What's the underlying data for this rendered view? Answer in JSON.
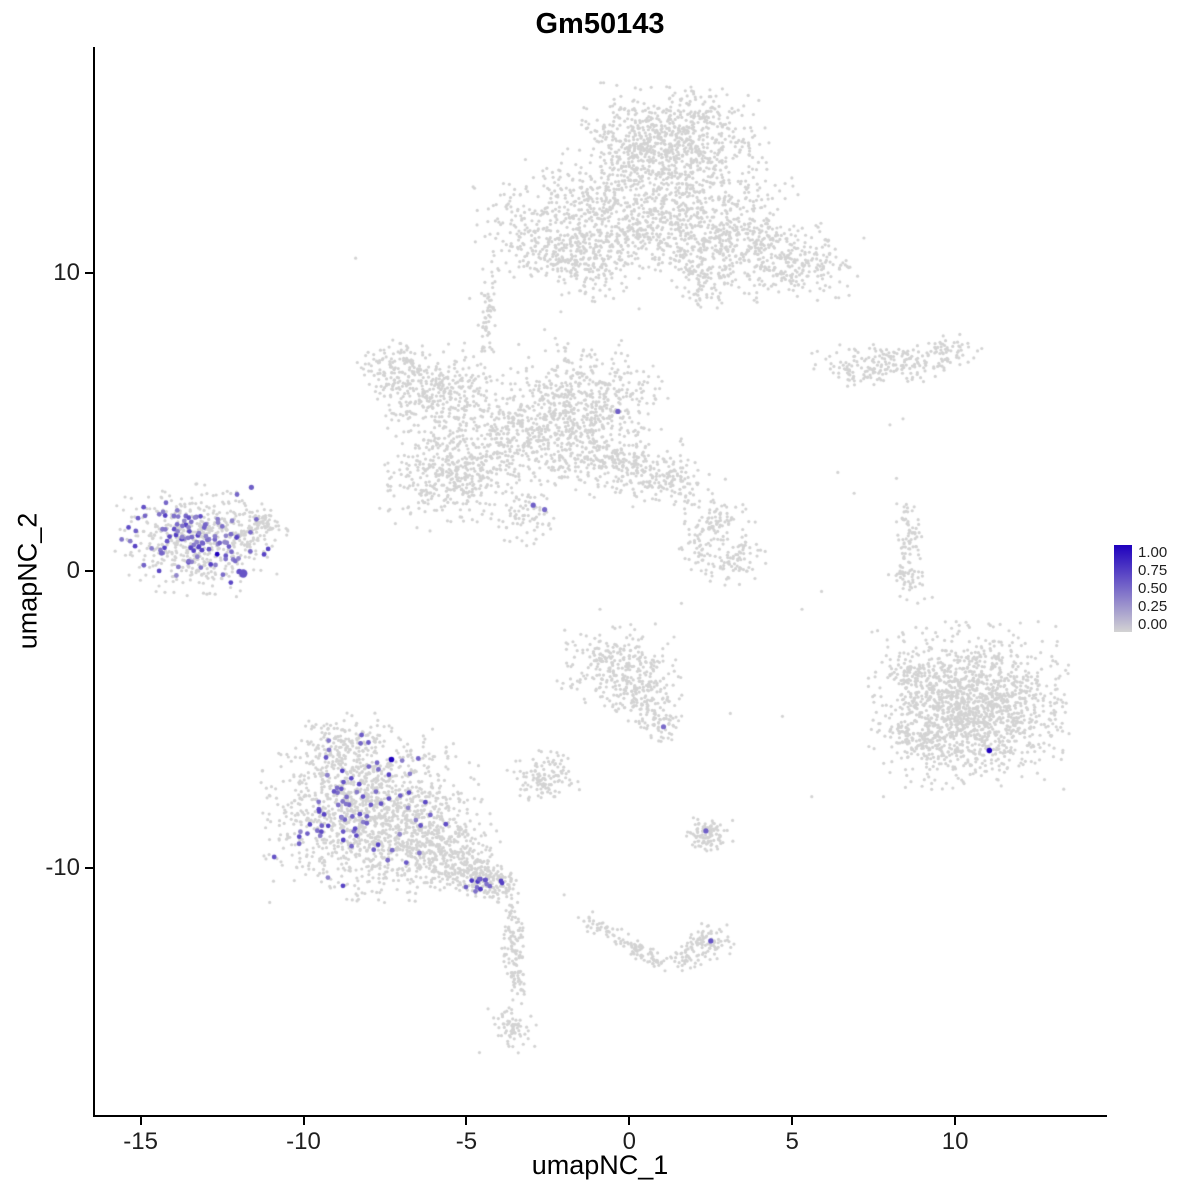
{
  "title": "Gm50143",
  "axes": {
    "xlabel": "umapNC_1",
    "ylabel": "umapNC_2",
    "x_ticks": [
      -15,
      -10,
      -5,
      0,
      5,
      10
    ],
    "y_ticks": [
      -10,
      0,
      10
    ]
  },
  "legend": {
    "labels": [
      "1.00",
      "0.75",
      "0.50",
      "0.25",
      "0.00"
    ],
    "color_high": "#1e00be",
    "color_low": "#d3d3d3"
  },
  "chart_data": {
    "type": "scatter",
    "title": "Gm50143",
    "xlabel": "umapNC_1",
    "ylabel": "umapNC_2",
    "xlim": [
      -16.4,
      14.6
    ],
    "ylim": [
      -18.3,
      17.6
    ],
    "x_ticks": [
      -15,
      -10,
      -5,
      0,
      5,
      10
    ],
    "y_ticks": [
      -10,
      0,
      10
    ],
    "grid": false,
    "legend_position": "right",
    "color_scale": {
      "low": "#d3d3d3",
      "high": "#1e00be",
      "domain": [
        0,
        1
      ],
      "tick_labels": [
        "1.00",
        "0.75",
        "0.50",
        "0.25",
        "0.00"
      ]
    },
    "seed": 7,
    "encoding_note": "UMAP point cloud encoded as gaussian cluster summaries: cx,cy = center (data units), sx,sy = std dev, n = point count, v = Gm50143 expression (0-1, 0 = grey background)",
    "background_clusters": [
      {
        "cx": 1.3,
        "cy": 14.4,
        "sx": 1.25,
        "sy": 0.85,
        "n": 850
      },
      {
        "cx": 0.1,
        "cy": 11.9,
        "sx": 2.1,
        "sy": 0.95,
        "n": 1000
      },
      {
        "cx": 2.9,
        "cy": 11.1,
        "sx": 1.1,
        "sy": 0.75,
        "n": 350
      },
      {
        "cx": 5.2,
        "cy": 10.3,
        "sx": 0.85,
        "sy": 0.6,
        "n": 220
      },
      {
        "cx": -2.6,
        "cy": 10.7,
        "sx": 0.7,
        "sy": 0.45,
        "n": 120
      },
      {
        "cx": -1.3,
        "cy": 10.2,
        "sx": 0.6,
        "sy": 0.5,
        "n": 120
      },
      {
        "cx": 2.3,
        "cy": 9.7,
        "sx": 0.45,
        "sy": 0.45,
        "n": 70
      },
      {
        "cx": -4.35,
        "cy": 8.4,
        "sx": 0.14,
        "sy": 0.75,
        "n": 55
      },
      {
        "cx": -6.0,
        "cy": 5.9,
        "sx": 0.95,
        "sy": 0.75,
        "n": 320
      },
      {
        "cx": -7.1,
        "cy": 6.9,
        "sx": 0.55,
        "sy": 0.45,
        "n": 110
      },
      {
        "cx": -1.3,
        "cy": 5.6,
        "sx": 1.05,
        "sy": 0.95,
        "n": 550
      },
      {
        "cx": -3.6,
        "cy": 4.5,
        "sx": 1.15,
        "sy": 0.85,
        "n": 420
      },
      {
        "cx": -5.6,
        "cy": 3.1,
        "sx": 0.95,
        "sy": 0.75,
        "n": 350
      },
      {
        "cx": -0.6,
        "cy": 3.7,
        "sx": 0.95,
        "sy": 0.55,
        "n": 220
      },
      {
        "cx": 1.1,
        "cy": 3.0,
        "sx": 0.8,
        "sy": 0.45,
        "n": 130
      },
      {
        "cx": -3.2,
        "cy": 1.9,
        "sx": 0.45,
        "sy": 0.45,
        "n": 70
      },
      {
        "cx": -13.3,
        "cy": 1.0,
        "sx": 1.05,
        "sy": 0.8,
        "n": 500
      },
      {
        "cx": -11.6,
        "cy": 1.3,
        "sx": 0.5,
        "sy": 0.38,
        "n": 90
      },
      {
        "cx": -11.05,
        "cy": 1.45,
        "sx": 0.25,
        "sy": 0.2,
        "n": 30
      },
      {
        "cx": 8.2,
        "cy": 7.0,
        "sx": 1.1,
        "sy": 0.32,
        "n": 170
      },
      {
        "cx": 9.8,
        "cy": 7.4,
        "sx": 0.45,
        "sy": 0.25,
        "n": 45
      },
      {
        "cx": 6.9,
        "cy": 6.6,
        "sx": 0.35,
        "sy": 0.2,
        "n": 30
      },
      {
        "cx": 8.6,
        "cy": 1.2,
        "sx": 0.2,
        "sy": 0.55,
        "n": 60
      },
      {
        "cx": 8.55,
        "cy": -0.15,
        "sx": 0.25,
        "sy": 0.4,
        "n": 50
      },
      {
        "cx": 2.7,
        "cy": 1.6,
        "sx": 0.5,
        "sy": 0.32,
        "n": 80
      },
      {
        "cx": 3.3,
        "cy": 0.45,
        "sx": 0.4,
        "sy": 0.45,
        "n": 80
      },
      {
        "cx": 2.2,
        "cy": 0.6,
        "sx": 0.3,
        "sy": 0.28,
        "n": 40
      },
      {
        "cx": 10.45,
        "cy": -4.55,
        "sx": 1.3,
        "sy": 1.2,
        "n": 1500
      },
      {
        "cx": 8.75,
        "cy": -3.5,
        "sx": 0.5,
        "sy": 0.4,
        "n": 80
      },
      {
        "cx": 8.8,
        "cy": -5.7,
        "sx": 0.4,
        "sy": 0.35,
        "n": 60
      },
      {
        "cx": -0.3,
        "cy": -3.3,
        "sx": 0.8,
        "sy": 0.65,
        "n": 280
      },
      {
        "cx": 0.55,
        "cy": -4.3,
        "sx": 0.45,
        "sy": 0.45,
        "n": 110
      },
      {
        "cx": 1.0,
        "cy": -5.2,
        "sx": 0.3,
        "sy": 0.28,
        "n": 50
      },
      {
        "cx": -2.6,
        "cy": -6.9,
        "sx": 0.5,
        "sy": 0.4,
        "n": 120
      },
      {
        "cx": -7.9,
        "cy": -8.2,
        "sx": 1.45,
        "sy": 1.25,
        "n": 1300
      },
      {
        "cx": -8.7,
        "cy": -5.95,
        "sx": 0.65,
        "sy": 0.5,
        "n": 180
      },
      {
        "cx": -6.0,
        "cy": -9.4,
        "sx": 0.85,
        "sy": 0.6,
        "n": 300
      },
      {
        "cx": -5.0,
        "cy": -10.0,
        "sx": 0.5,
        "sy": 0.32,
        "n": 110
      },
      {
        "cx": -4.35,
        "cy": -10.5,
        "sx": 0.4,
        "sy": 0.28,
        "n": 130
      },
      {
        "cx": -3.6,
        "cy": -12.2,
        "sx": 0.16,
        "sy": 0.75,
        "n": 85
      },
      {
        "cx": -3.45,
        "cy": -13.6,
        "sx": 0.14,
        "sy": 0.45,
        "n": 45
      },
      {
        "cx": -3.6,
        "cy": -15.4,
        "sx": 0.32,
        "sy": 0.38,
        "n": 65
      },
      {
        "cx": 1.7,
        "cy": -13.0,
        "sx": 0.25,
        "sy": 0.2,
        "n": 40
      },
      {
        "cx": 2.45,
        "cy": -12.45,
        "sx": 0.33,
        "sy": 0.26,
        "n": 80
      },
      {
        "cx": 2.45,
        "cy": -8.9,
        "sx": 0.33,
        "sy": 0.28,
        "n": 100
      }
    ],
    "background_lines": [
      {
        "x1": -1.35,
        "y1": -11.7,
        "x2": 1.0,
        "y2": -13.2,
        "jitter": 0.14,
        "n": 110
      }
    ],
    "background_points": [
      [
        -8.4,
        10.5
      ],
      [
        -4.9,
        9.15
      ],
      [
        -4.2,
        9.9
      ],
      [
        -2.6,
        8.1
      ],
      [
        -2.1,
        8.7
      ],
      [
        0.3,
        8.8
      ],
      [
        6.7,
        6.2
      ],
      [
        8.4,
        5.1
      ],
      [
        8.0,
        4.9
      ],
      [
        6.4,
        3.3
      ],
      [
        6.9,
        2.6
      ],
      [
        8.2,
        3.1
      ],
      [
        5.9,
        -0.7
      ],
      [
        5.3,
        -1.3
      ],
      [
        9.3,
        -0.9
      ],
      [
        8.8,
        -2.6
      ],
      [
        9.0,
        -2.1
      ],
      [
        4.7,
        -4.9
      ],
      [
        3.1,
        -4.8
      ],
      [
        5.6,
        -7.6
      ],
      [
        7.8,
        -7.6
      ],
      [
        -0.9,
        -1.3
      ],
      [
        1.6,
        -1.1
      ],
      [
        -2.0,
        -10.9
      ],
      [
        -4.6,
        -16.2
      ]
    ],
    "expression_clusters": [
      {
        "cx": -13.35,
        "cy": 1.0,
        "sx": 0.95,
        "sy": 0.7,
        "n": 105,
        "vmin": 0.35,
        "vmax": 0.7,
        "r": 2.4
      },
      {
        "cx": -8.3,
        "cy": -8.2,
        "sx": 1.25,
        "sy": 1.15,
        "n": 80,
        "vmin": 0.35,
        "vmax": 0.7,
        "r": 2.4
      },
      {
        "cx": -4.4,
        "cy": -10.55,
        "sx": 0.28,
        "sy": 0.14,
        "n": 14,
        "vmin": 0.45,
        "vmax": 0.75,
        "r": 2.4
      }
    ],
    "expression_points": [
      {
        "x": -0.35,
        "y": 5.35,
        "v": 0.55
      },
      {
        "x": -2.95,
        "y": 2.2,
        "v": 0.55
      },
      {
        "x": -2.6,
        "y": 2.05,
        "v": 0.5
      },
      {
        "x": 1.05,
        "y": -5.25,
        "v": 0.5
      },
      {
        "x": 2.35,
        "y": -8.75,
        "v": 0.55
      },
      {
        "x": 2.5,
        "y": -12.45,
        "v": 0.6
      },
      {
        "x": 11.05,
        "y": -6.05,
        "v": 1.0,
        "r": 2.8
      },
      {
        "x": -7.3,
        "y": -6.35,
        "v": 1.0,
        "r": 2.8
      },
      {
        "x": -12.65,
        "y": 0.55,
        "v": 1.0,
        "r": 2.4
      },
      {
        "x": -11.85,
        "y": -0.1,
        "v": 0.6,
        "r": 4.2
      },
      {
        "x": -11.6,
        "y": 2.8,
        "v": 0.55
      }
    ]
  }
}
